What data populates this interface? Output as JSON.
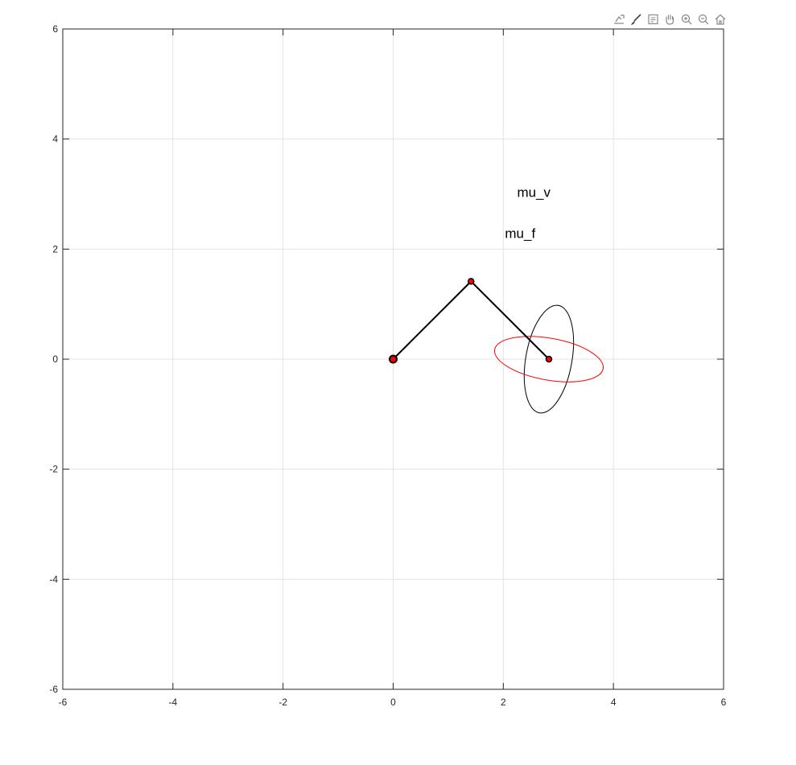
{
  "toolbar": {
    "buttons": [
      {
        "icon": "export-icon"
      },
      {
        "icon": "brush-icon"
      },
      {
        "icon": "data-tips-icon"
      },
      {
        "icon": "pan-icon"
      },
      {
        "icon": "zoom-in-icon"
      },
      {
        "icon": "zoom-out-icon"
      },
      {
        "icon": "home-icon"
      }
    ]
  },
  "chart_data": {
    "type": "line",
    "title": "",
    "xlabel": "",
    "ylabel": "",
    "xlim": [
      -6,
      6
    ],
    "ylim": [
      -6,
      6
    ],
    "grid": true,
    "xticks": [
      "-6",
      "-4",
      "-2",
      "0",
      "2",
      "4",
      "6"
    ],
    "yticks": [
      "-6",
      "-4",
      "-2",
      "0",
      "2",
      "4",
      "6"
    ],
    "xtick_values": [
      -6,
      -4,
      -2,
      0,
      2,
      4,
      6
    ],
    "ytick_values": [
      -6,
      -4,
      -2,
      0,
      2,
      4,
      6
    ],
    "arm": {
      "color": "#000000",
      "joints": [
        {
          "x": 0,
          "y": 0
        },
        {
          "x": 1.414,
          "y": 1.414
        },
        {
          "x": 2.828,
          "y": 0
        }
      ],
      "joint_color": "#ff0000"
    },
    "ellipses": [
      {
        "label": "mu_v",
        "color": "#000000",
        "cx": 2.828,
        "cy": 0,
        "semi_major": 0.99,
        "semi_minor": 0.42,
        "angle_deg": 80
      },
      {
        "label": "mu_f",
        "color": "#ff0000",
        "cx": 2.828,
        "cy": 0,
        "semi_major": 1.0,
        "semi_minor": 0.38,
        "angle_deg": -10
      }
    ],
    "annotations": [
      {
        "text": "mu_v",
        "x": 2.25,
        "y": 2.95
      },
      {
        "text": "mu_f",
        "x": 2.03,
        "y": 2.2
      }
    ]
  }
}
